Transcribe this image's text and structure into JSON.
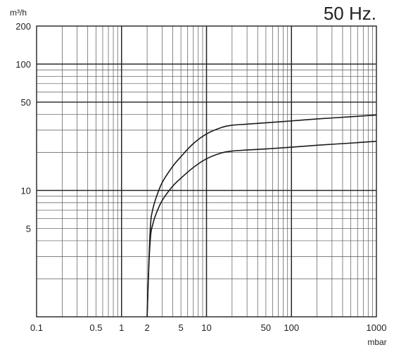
{
  "chart_data": {
    "type": "line",
    "title": "50 Hz.",
    "xlabel": "mbar",
    "ylabel": "m³/h",
    "x_scale": "log",
    "y_scale": "log",
    "xlim": [
      0.1,
      1000
    ],
    "ylim": [
      1,
      200
    ],
    "grid": true,
    "x_ticks": [
      {
        "value": 0.1,
        "label": "0.1"
      },
      {
        "value": 0.5,
        "label": "0.5"
      },
      {
        "value": 1,
        "label": "1"
      },
      {
        "value": 2,
        "label": "2"
      },
      {
        "value": 5,
        "label": "5"
      },
      {
        "value": 10,
        "label": "10"
      },
      {
        "value": 50,
        "label": "50"
      },
      {
        "value": 100,
        "label": "100"
      },
      {
        "value": 1000,
        "label": "1000"
      }
    ],
    "y_ticks": [
      {
        "value": 200,
        "label": "200"
      },
      {
        "value": 100,
        "label": "100"
      },
      {
        "value": 50,
        "label": "50"
      },
      {
        "value": 10,
        "label": "10"
      },
      {
        "value": 5,
        "label": "5"
      }
    ],
    "series": [
      {
        "x": [
          2.0,
          2.1,
          2.2,
          2.3,
          2.5,
          3.0,
          4.0,
          5.0,
          7.0,
          10.0,
          15.0,
          20.0,
          30.0,
          50.0,
          100.0,
          200.0,
          500.0,
          1000.0
        ],
        "y": [
          1.0,
          2.8,
          5.5,
          6.8,
          8.4,
          11.5,
          15.5,
          18.5,
          23.5,
          28.0,
          31.5,
          32.8,
          33.5,
          34.3,
          35.5,
          36.8,
          38.3,
          39.5
        ]
      },
      {
        "x": [
          2.0,
          2.1,
          2.2,
          2.3,
          2.5,
          3.0,
          4.0,
          5.0,
          7.0,
          10.0,
          15.0,
          20.0,
          30.0,
          50.0,
          100.0,
          200.0,
          500.0,
          1000.0
        ],
        "y": [
          1.0,
          2.6,
          4.4,
          5.2,
          6.3,
          8.3,
          10.8,
          12.5,
          15.2,
          17.8,
          19.8,
          20.5,
          20.9,
          21.3,
          22.0,
          22.8,
          23.7,
          24.5
        ]
      }
    ]
  }
}
